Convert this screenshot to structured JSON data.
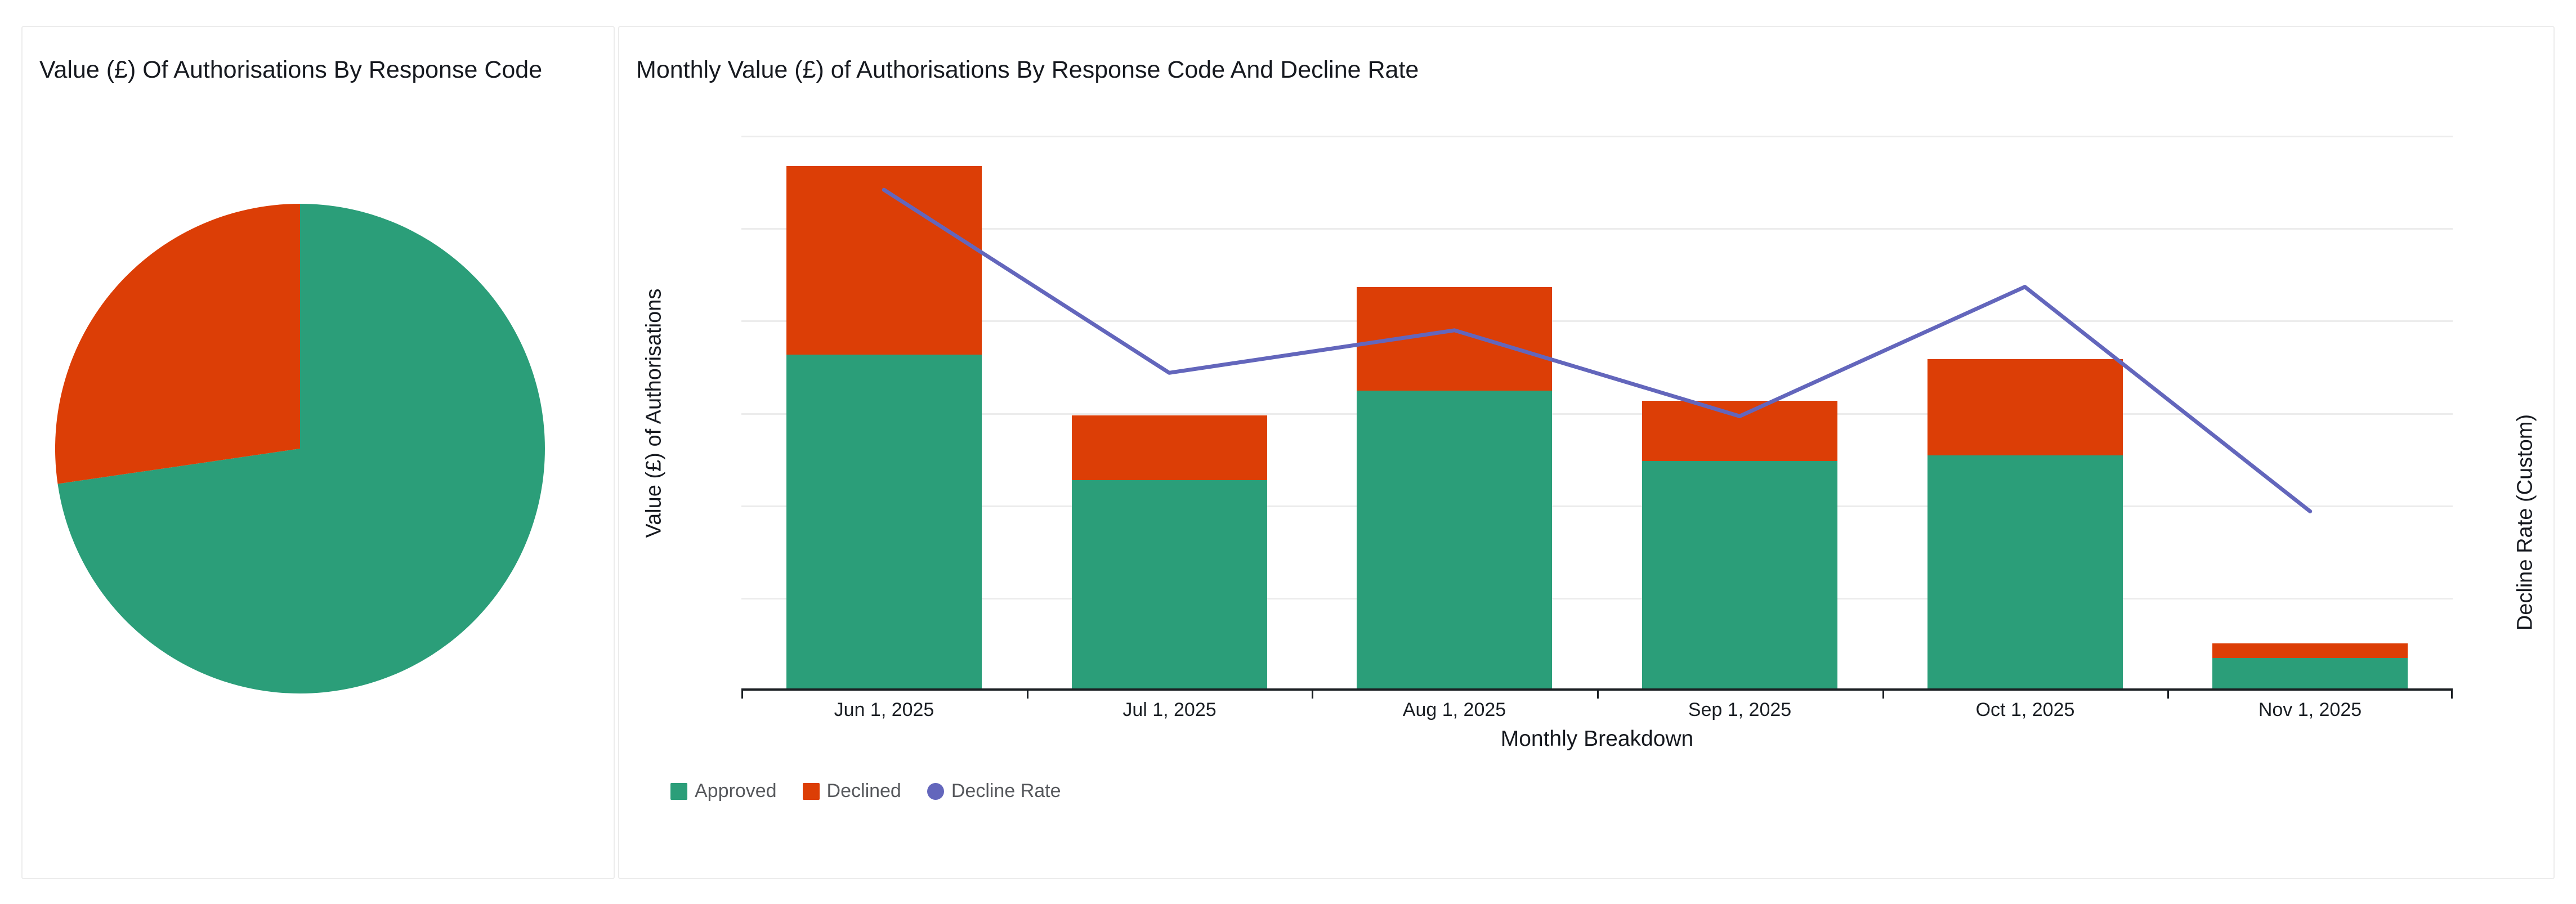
{
  "pie_panel": {
    "title": "Value (£) Of Authorisations By Response Code"
  },
  "combo_panel": {
    "title": "Monthly Value (£) of Authorisations By Response Code And Decline Rate",
    "xlabel": "Monthly Breakdown",
    "ylabel_left": "Value (£) of Authorisations",
    "ylabel_right": "Decline Rate (Custom)"
  },
  "colors": {
    "approved": "#2b9e79",
    "declined": "#dc3e06",
    "decline_rate": "#6366bc",
    "gridline": "#ececec",
    "axis": "#1b1f23",
    "title_text": "#16191f",
    "legend_text": "#56585c",
    "card_border": "#ececec",
    "background": "#ffffff"
  },
  "chart_data": [
    {
      "type": "pie",
      "title": "Value (£) Of Authorisations By Response Code",
      "slices": [
        {
          "label": "Approved",
          "percent": 72.7,
          "color": "#2b9e79"
        },
        {
          "label": "Declined",
          "percent": 27.3,
          "color": "#dc3e06"
        }
      ],
      "start_angle_deg": 0,
      "direction": "clockwise",
      "labels_visible": false,
      "note": "no data labels shown; slice percentages estimated from angles"
    },
    {
      "type": "bar+line",
      "title": "Monthly Value (£) of Authorisations By Response Code And Decline Rate",
      "categories": [
        "Jun 1, 2025",
        "Jul 1, 2025",
        "Aug 1, 2025",
        "Sep 1, 2025",
        "Oct 1, 2025",
        "Nov 1, 2025"
      ],
      "series": [
        {
          "name": "Approved",
          "type": "bar",
          "stack": "value",
          "axis": "left",
          "color": "#2b9e79",
          "values": [
            3.64,
            2.28,
            3.25,
            2.49,
            2.55,
            0.35
          ]
        },
        {
          "name": "Declined",
          "type": "bar",
          "stack": "value",
          "axis": "left",
          "color": "#dc3e06",
          "values": [
            2.04,
            0.7,
            1.12,
            0.65,
            1.04,
            0.16
          ]
        },
        {
          "name": "Decline Rate",
          "type": "line",
          "axis": "right",
          "color": "#6366bc",
          "values": [
            5.42,
            3.44,
            3.9,
            2.97,
            4.37,
            1.94
          ]
        }
      ],
      "xlabel": "Monthly Breakdown",
      "ylabel": "Value (£) of Authorisations",
      "ylabel_right": "Decline Rate (Custom)",
      "ylim": [
        0,
        6
      ],
      "grid": true,
      "y_tick_labels_visible": false,
      "legend_position": "bottom-left",
      "value_units": "relative gridline units — numeric axis tick labels are not displayed in the chart"
    }
  ]
}
